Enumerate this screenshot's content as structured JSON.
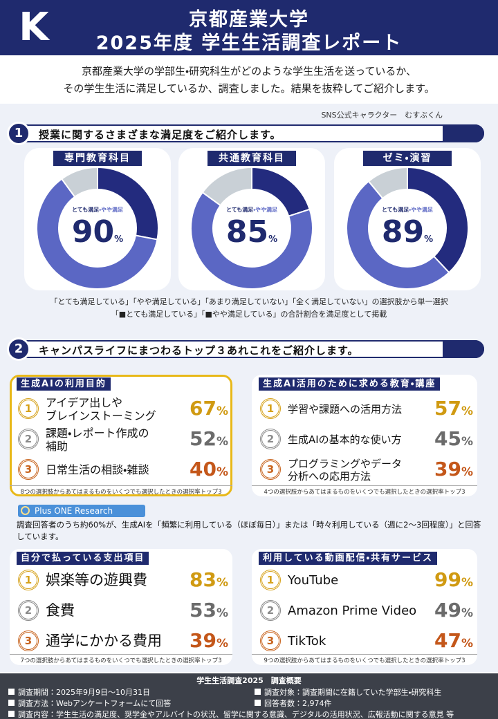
{
  "header": {
    "logo": "K",
    "university": "京都産業大学",
    "title": "2025年度 学生生活調査レポート"
  },
  "intro": [
    "京都産業大学の学部生・研究科生がどのような学生生活を送っているか、",
    "その学生生活に満足しているか、調査しました。結果を抜粋してご紹介します。"
  ],
  "character_caption": "SNS公式キャラクター　むすぶくん",
  "section1": {
    "number": 1,
    "title": "授業に関するさまざまな満足度をご紹介します。",
    "unit": "%",
    "center_label": [
      "とても満足",
      "・やや満足"
    ],
    "charts": [
      {
        "title": "専門教育科目",
        "total": 90,
        "segments": [
          {
            "color": "#232b7e",
            "value": 28
          },
          {
            "color": "#5b67c4",
            "value": 62
          },
          {
            "color": "#c9d0d6",
            "value": 10
          }
        ]
      },
      {
        "title": "共通教育科目",
        "total": 85,
        "segments": [
          {
            "color": "#232b7e",
            "value": 20
          },
          {
            "color": "#5b67c4",
            "value": 65
          },
          {
            "color": "#c9d0d6",
            "value": 15
          }
        ]
      },
      {
        "title": "ゼミ・演習",
        "total": 89,
        "segments": [
          {
            "color": "#232b7e",
            "value": 38
          },
          {
            "color": "#5b67c4",
            "value": 51
          },
          {
            "color": "#c9d0d6",
            "value": 11
          }
        ]
      }
    ],
    "notes": [
      "「とても満足している」「やや満足している」「あまり満足していない」「全く満足していない」の選択肢から単一選択",
      "「■とても満足している」「■やや満足している」の合計割合を満足度として掲載"
    ]
  },
  "section2": {
    "number": 2,
    "title": "キャンパスライフにまつわるトップ３あれこれをご紹介します。",
    "unit": "%",
    "cards": [
      {
        "title": "生成AIの利用目的",
        "items": [
          {
            "rank": 1,
            "label": "アイデア出しや\nブレインストーミング",
            "value": 67
          },
          {
            "rank": 2,
            "label": "課題・レポート作成の\n補助",
            "value": 52
          },
          {
            "rank": 3,
            "label": "日常生活の相談・雑談",
            "value": 40
          }
        ],
        "note": "8つの選択肢からあてはまるものをいくつでも選択したときの選択率トップ3"
      },
      {
        "title": "生成AI活用のために求める教育・講座",
        "items": [
          {
            "rank": 1,
            "label": "学習や課題への活用方法",
            "value": 57
          },
          {
            "rank": 2,
            "label": "生成AIの基本的な使い方",
            "value": 45
          },
          {
            "rank": 3,
            "label": "プログラミングやデータ\n分析への応用方法",
            "value": 39
          }
        ],
        "note": "4つの選択肢からあてはまるものをいくつでも選択したときの選択率トップ3"
      },
      {
        "title": "自分で払っている支出項目",
        "items": [
          {
            "rank": 1,
            "label": "娯楽等の遊興費",
            "value": 83
          },
          {
            "rank": 2,
            "label": "食費",
            "value": 53
          },
          {
            "rank": 3,
            "label": "通学にかかる費用",
            "value": 39
          }
        ],
        "note": "7つの選択肢からあてはまるものをいくつでも選択したときの選択率トップ3"
      },
      {
        "title": "利用している動画配信・共有サービス",
        "items": [
          {
            "rank": 1,
            "label": "YouTube",
            "value": 99
          },
          {
            "rank": 2,
            "label": "Amazon Prime Video",
            "value": 49
          },
          {
            "rank": 3,
            "label": "TikTok",
            "value": 47
          }
        ],
        "note": "9つの選択肢からあてはまるものをいくつでも選択したときの選択率トップ3"
      }
    ],
    "plus_one": {
      "label": "Plus ONE Research",
      "text": "調査回答者のうち約60%が、生成AIを「頻繁に利用している（ほぼ毎日）」または「時々利用している（週に2～3回程度）」と回答しています。"
    }
  },
  "footer": {
    "title": "学生生活調査2025　調査概要",
    "items": [
      "調査期間：2025年9月9日～10月31日",
      "調査対象：調査期間に在籍していた学部生・研究科生",
      "調査方法：Webアンケートフォームにて回答",
      "回答者数：2,974件",
      "調査内容：学生生活の満足度、奨学金やアルバイトの状況、留学に関する意識、デジタルの活用状況、広報活動に関する意見 等"
    ]
  }
}
